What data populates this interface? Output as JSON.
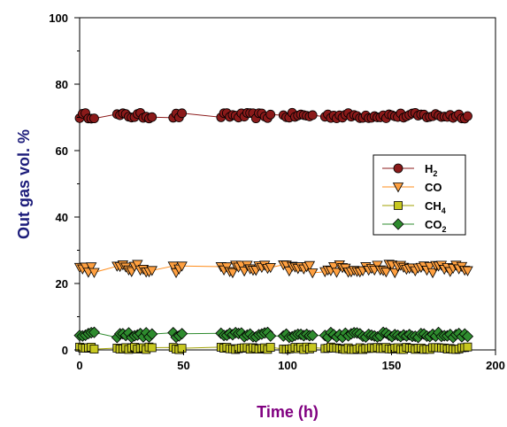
{
  "chart_data": {
    "type": "scatter",
    "title": "",
    "xlabel": "Time (h)",
    "ylabel": "Out gas vol. %",
    "xlim": [
      0,
      200
    ],
    "ylim": [
      0,
      100
    ],
    "x_ticks": [
      "0",
      "50",
      "100",
      "150",
      "200"
    ],
    "y_ticks": [
      "0",
      "20",
      "40",
      "60",
      "80",
      "100"
    ],
    "grid": false,
    "legend_position": "right-middle",
    "series": [
      {
        "name": "H2",
        "label_main": "H",
        "label_sub": "2",
        "marker": "circle",
        "color": "#8b1a1a",
        "line_color": "#8b1a1a",
        "mean": 70.5,
        "jitter": 0.9
      },
      {
        "name": "CO",
        "label_main": "CO",
        "label_sub": "",
        "marker": "triangle-down",
        "color": "#ffa040",
        "line_color": "#ff8c1a",
        "mean": 24.5,
        "jitter": 1.3
      },
      {
        "name": "CH4",
        "label_main": "CH",
        "label_sub": "4",
        "marker": "square",
        "color": "#c8c820",
        "line_color": "#a0a000",
        "mean": 0.5,
        "jitter": 0.4
      },
      {
        "name": "CO2",
        "label_main": "CO",
        "label_sub": "2",
        "marker": "diamond",
        "color": "#2e8b2e",
        "line_color": "#2e8b2e",
        "mean": 4.5,
        "jitter": 0.8
      }
    ],
    "x_segments": [
      [
        0,
        8
      ],
      [
        18,
        35
      ],
      [
        45,
        50
      ],
      [
        68,
        92
      ],
      [
        98,
        113
      ],
      [
        118,
        188
      ]
    ]
  }
}
